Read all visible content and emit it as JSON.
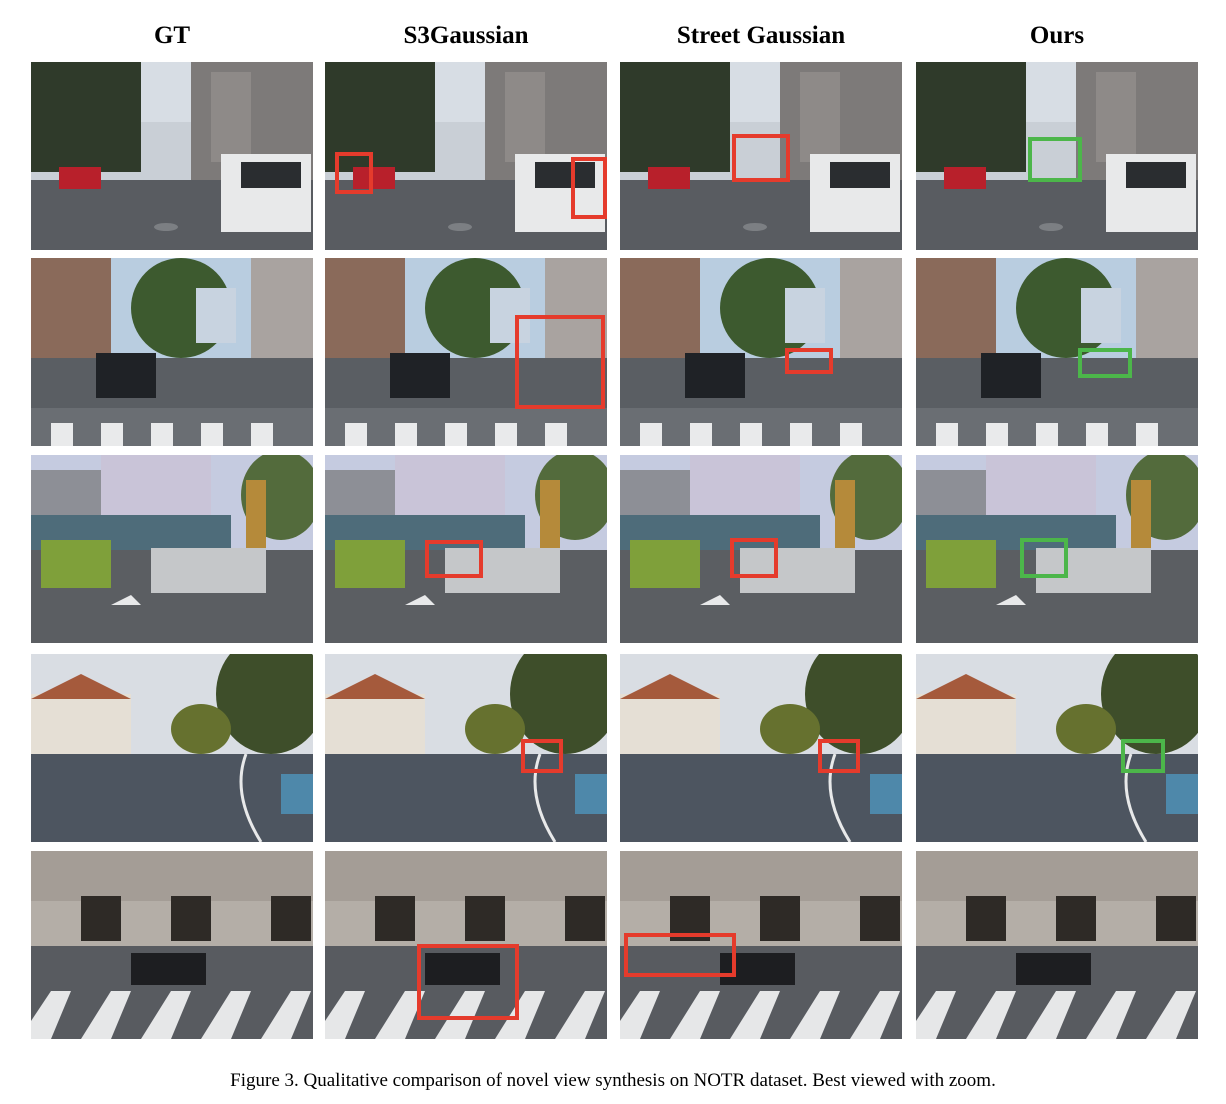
{
  "columns": [
    "GT",
    "S3Gaussian",
    "Street Gaussian",
    "Ours"
  ],
  "caption": "Figure 3. Qualitative comparison of novel view synthesis on NOTR dataset. Best viewed with zoom.",
  "colors": {
    "error_box": "#e53b2c",
    "ours_box": "#4cb64a"
  },
  "scenes": [
    {
      "row": 1,
      "description": "urban street with parked cars and white van"
    },
    {
      "row": 2,
      "description": "intersection with SUV and crosswalk"
    },
    {
      "row": 3,
      "description": "intersection with green van and silver SUV"
    },
    {
      "row": 4,
      "description": "suburban road with house and trees"
    },
    {
      "row": 5,
      "description": "building facade with crosswalk and sedan"
    }
  ]
}
